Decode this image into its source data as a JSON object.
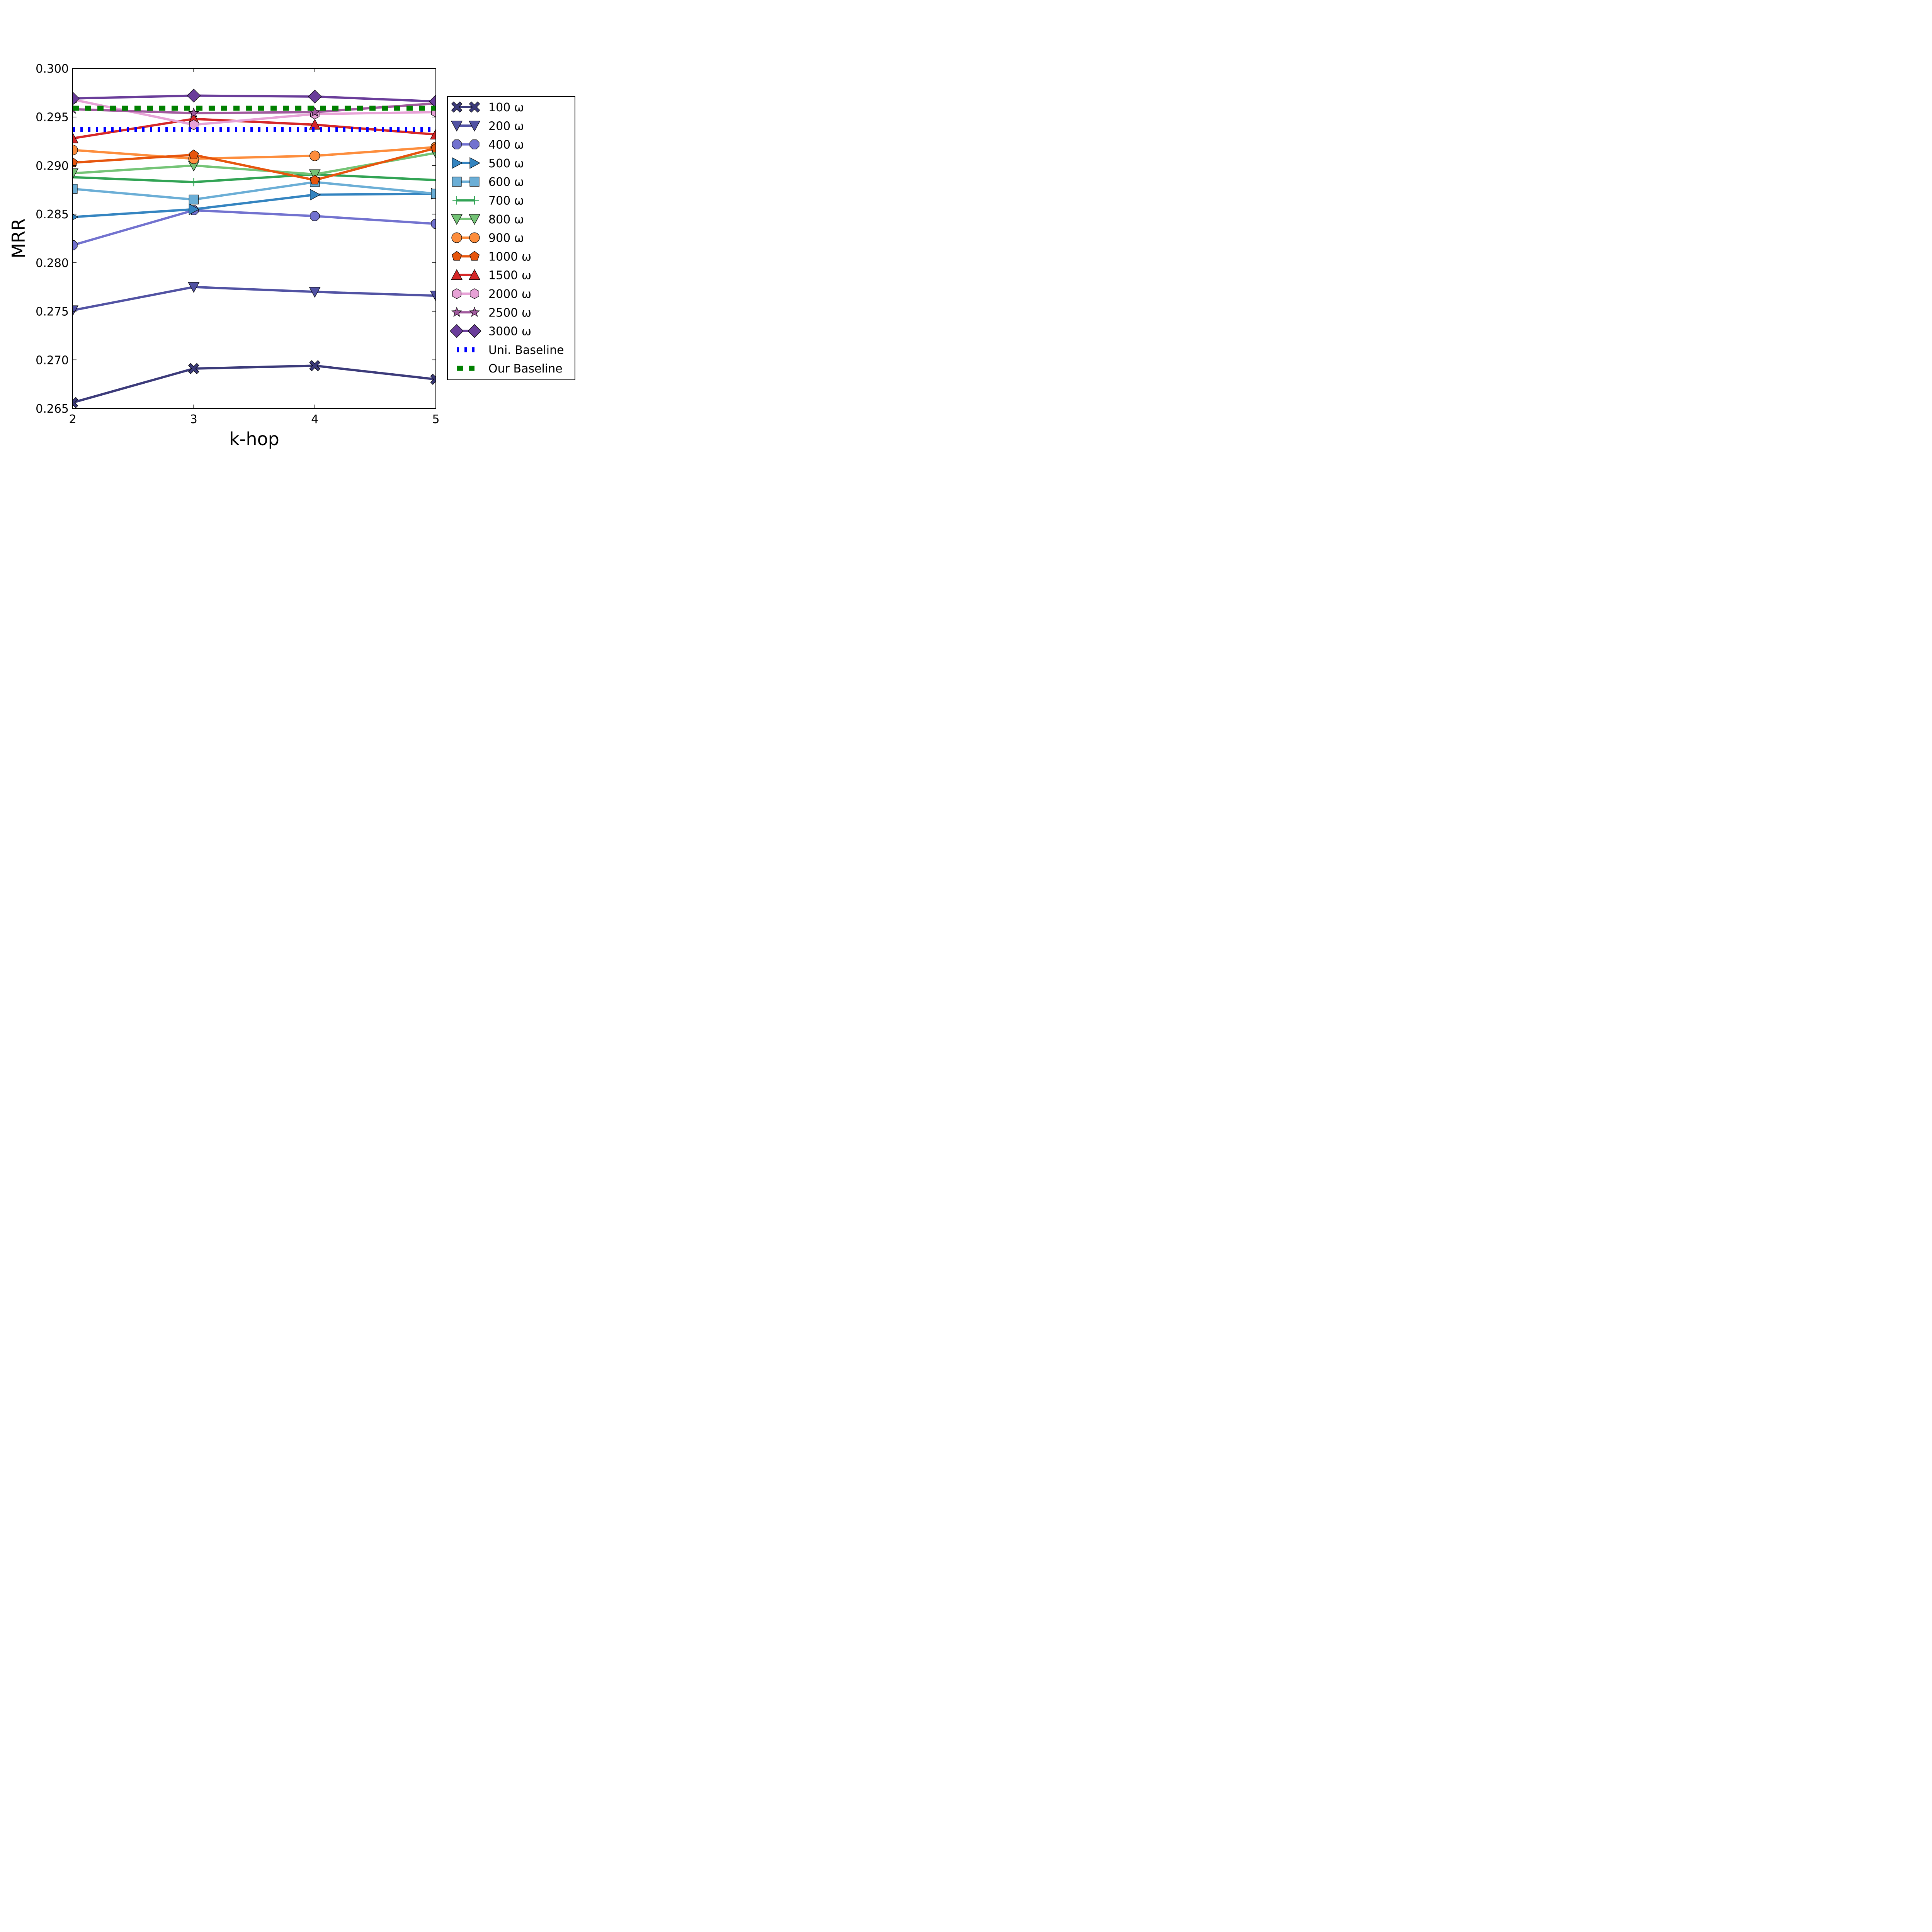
{
  "chart_data": {
    "type": "line",
    "title": "",
    "xlabel": "k-hop",
    "ylabel": "MRR",
    "x": [
      2,
      3,
      4,
      5
    ],
    "xlim": [
      2,
      5
    ],
    "ylim": [
      0.265,
      0.3
    ],
    "xticks": [
      "2",
      "3",
      "4",
      "5"
    ],
    "yticks": [
      "0.265",
      "0.270",
      "0.275",
      "0.280",
      "0.285",
      "0.290",
      "0.295",
      "0.300"
    ],
    "grid": false,
    "legend_position": "right",
    "series": [
      {
        "name": "100 ω",
        "values": [
          0.2656,
          0.2691,
          0.2694,
          0.268
        ],
        "color": "#3b3a7a",
        "marker": "X"
      },
      {
        "name": "200 ω",
        "values": [
          0.2751,
          0.2775,
          0.277,
          0.2766
        ],
        "color": "#5152a3",
        "marker": "v"
      },
      {
        "name": "400 ω",
        "values": [
          0.2818,
          0.2854,
          0.2848,
          0.284
        ],
        "color": "#7272cf",
        "marker": "o8"
      },
      {
        "name": "500 ω",
        "values": [
          0.2847,
          0.2855,
          0.287,
          0.2871
        ],
        "color": "#3484c0",
        "marker": ">"
      },
      {
        "name": "600 ω",
        "values": [
          0.2876,
          0.2865,
          0.2883,
          0.2871
        ],
        "color": "#6baed6",
        "marker": "s"
      },
      {
        "name": "700 ω",
        "values": [
          0.2888,
          0.2883,
          0.2891,
          0.2885
        ],
        "color": "#31a354",
        "marker": "+"
      },
      {
        "name": "800 ω",
        "values": [
          0.2892,
          0.29,
          0.2891,
          0.2913
        ],
        "color": "#74c476",
        "marker": "v"
      },
      {
        "name": "900 ω",
        "values": [
          0.2916,
          0.2907,
          0.291,
          0.2919
        ],
        "color": "#fd8d3c",
        "marker": "o"
      },
      {
        "name": "1000 ω",
        "values": [
          0.2903,
          0.2911,
          0.2885,
          0.2918
        ],
        "color": "#e6550d",
        "marker": "p"
      },
      {
        "name": "1500 ω",
        "values": [
          0.2928,
          0.2948,
          0.2942,
          0.2932
        ],
        "color": "#d62728",
        "marker": "^"
      },
      {
        "name": "2000 ω",
        "values": [
          0.2968,
          0.2942,
          0.2953,
          0.2955
        ],
        "color": "#e7a2d6",
        "marker": "h"
      },
      {
        "name": "2500 ω",
        "values": [
          0.2958,
          0.2954,
          0.2955,
          0.2964
        ],
        "color": "#a15a9e",
        "marker": "*"
      },
      {
        "name": "3000 ω",
        "values": [
          0.2969,
          0.2972,
          0.2971,
          0.2966
        ],
        "color": "#6a3d9a",
        "marker": "D"
      },
      {
        "name": "Uni. Baseline",
        "values": [
          0.2937,
          0.2937,
          0.2937,
          0.2937
        ],
        "color": "#0000ff",
        "marker": "none",
        "style": "dotted"
      },
      {
        "name": "Our Baseline",
        "values": [
          0.2959,
          0.2959,
          0.2959,
          0.2959
        ],
        "color": "#008000",
        "marker": "none",
        "style": "dotted"
      }
    ]
  }
}
